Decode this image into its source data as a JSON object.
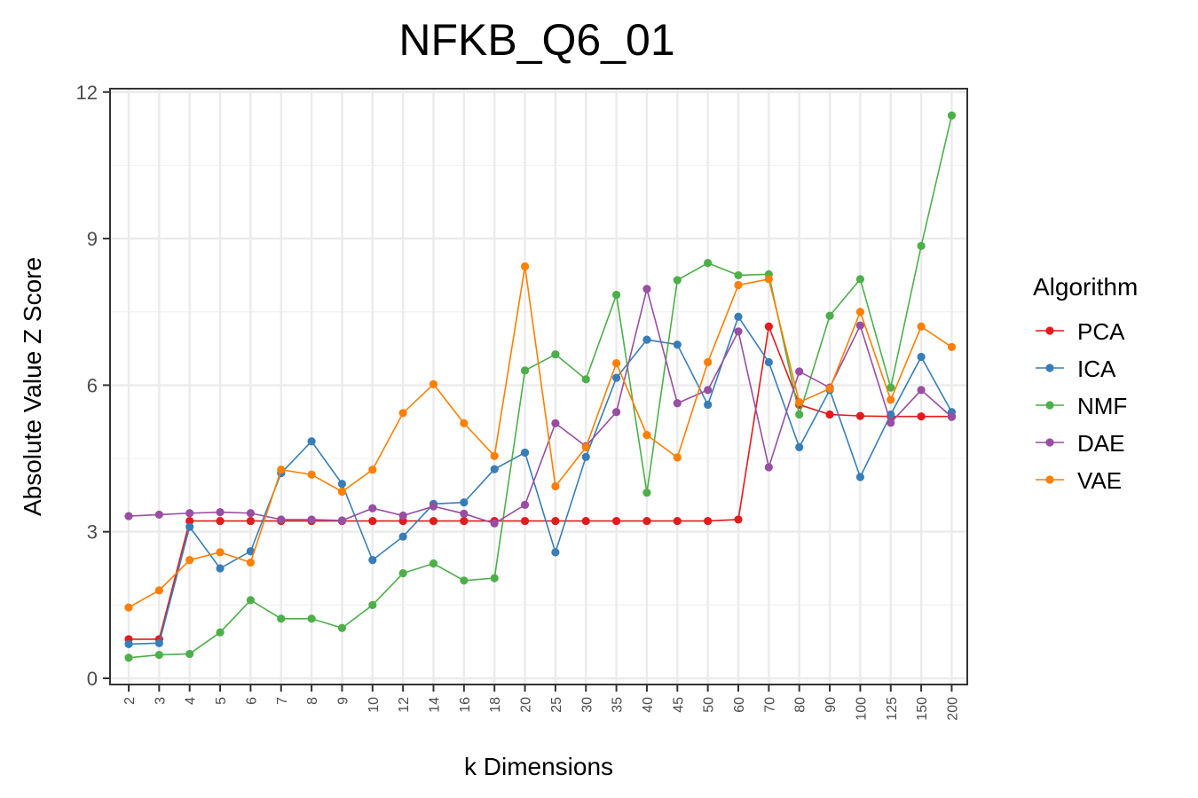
{
  "chart_data": {
    "type": "line",
    "title": "NFKB_Q6_01",
    "xlabel": "k Dimensions",
    "ylabel": "Absolute Value Z Score",
    "ylim": [
      0,
      12
    ],
    "yticks": [
      0,
      3,
      6,
      9,
      12
    ],
    "categories": [
      "2",
      "3",
      "4",
      "5",
      "6",
      "7",
      "8",
      "9",
      "10",
      "12",
      "14",
      "16",
      "18",
      "20",
      "25",
      "30",
      "35",
      "40",
      "45",
      "50",
      "60",
      "70",
      "80",
      "90",
      "100",
      "125",
      "150",
      "200"
    ],
    "legend_title": "Algorithm",
    "legend_position": "right",
    "grid": true,
    "series": [
      {
        "name": "PCA",
        "color": "#E41A1C",
        "values": [
          0.8,
          0.8,
          3.22,
          3.22,
          3.22,
          3.22,
          3.22,
          3.22,
          3.22,
          3.22,
          3.22,
          3.22,
          3.22,
          3.22,
          3.22,
          3.22,
          3.22,
          3.22,
          3.22,
          3.22,
          3.25,
          7.2,
          5.6,
          5.4,
          5.37,
          5.36,
          5.36,
          5.36
        ]
      },
      {
        "name": "ICA",
        "color": "#377EB8",
        "values": [
          0.7,
          0.72,
          3.1,
          2.25,
          2.6,
          4.2,
          4.85,
          3.98,
          2.42,
          2.9,
          3.57,
          3.6,
          4.28,
          4.62,
          2.58,
          4.53,
          6.15,
          6.93,
          6.83,
          5.6,
          7.4,
          6.47,
          4.73,
          5.9,
          4.12,
          5.4,
          6.58,
          5.45
        ]
      },
      {
        "name": "NMF",
        "color": "#4DAF4A",
        "values": [
          0.42,
          0.48,
          0.5,
          0.94,
          1.6,
          1.22,
          1.22,
          1.03,
          1.5,
          2.15,
          2.35,
          2.0,
          2.05,
          6.3,
          6.63,
          6.12,
          7.85,
          3.8,
          8.15,
          8.5,
          8.25,
          8.27,
          5.4,
          7.42,
          8.17,
          5.95,
          8.85,
          11.52
        ]
      },
      {
        "name": "DAE",
        "color": "#984EA3",
        "values": [
          3.32,
          3.35,
          3.38,
          3.4,
          3.38,
          3.25,
          3.25,
          3.23,
          3.48,
          3.33,
          3.52,
          3.37,
          3.17,
          3.55,
          5.22,
          4.75,
          5.45,
          7.97,
          5.63,
          5.9,
          7.1,
          4.32,
          6.28,
          5.95,
          7.22,
          5.23,
          5.9,
          5.35
        ]
      },
      {
        "name": "VAE",
        "color": "#FF7F00",
        "values": [
          1.45,
          1.8,
          2.42,
          2.58,
          2.37,
          4.27,
          4.17,
          3.82,
          4.27,
          5.43,
          6.02,
          5.22,
          4.55,
          8.43,
          3.93,
          4.73,
          6.45,
          4.98,
          4.52,
          6.47,
          8.05,
          8.17,
          5.65,
          5.93,
          7.5,
          5.7,
          7.2,
          6.78
        ]
      }
    ]
  }
}
